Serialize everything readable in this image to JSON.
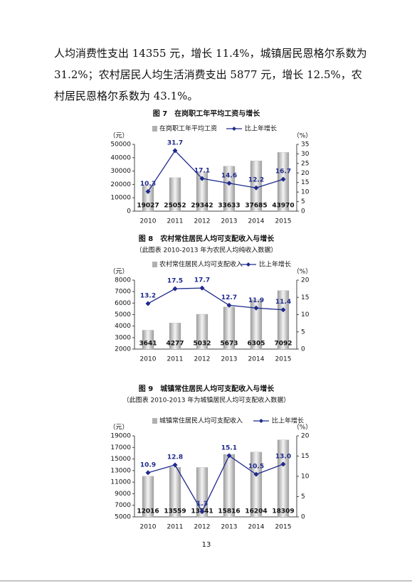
{
  "paragraph": "人均消费性支出 14355 元，增长 11.4%，城镇居民恩格尔系数为 31.2%；农村居民人均生活消费支出 5877 元，增长 12.5%，农村居民恩格尔系数为 43.1%。",
  "page_number": "13",
  "chart_data": [
    {
      "type": "combo",
      "title": "图 7　在岗职工年平均工资与增长",
      "ylabel": "（元）",
      "y2label": "（%）",
      "categories": [
        "2010",
        "2011",
        "2012",
        "2013",
        "2014",
        "2015"
      ],
      "series": [
        {
          "name": "在岗职工年平均工资",
          "type": "bar",
          "color": "#b0b0b0",
          "values": [
            19027,
            25052,
            29342,
            33633,
            37685,
            43970
          ]
        },
        {
          "name": "比上年增长",
          "type": "line",
          "axis": "y2",
          "color": "#1f2a8c",
          "values": [
            10.3,
            31.7,
            17.1,
            14.6,
            12.2,
            16.7
          ]
        }
      ],
      "ylim": [
        0,
        50000
      ],
      "yticks": [
        0,
        10000,
        20000,
        30000,
        40000,
        50000
      ],
      "y2lim": [
        0,
        35
      ],
      "y2ticks": [
        0,
        5,
        10,
        15,
        20,
        25,
        30,
        35
      ]
    },
    {
      "type": "combo",
      "title": "图 8　农村常住居民人均可支配收入与增长",
      "subtitle": "（此图表 2010-2013 年为农民人均纯收入数据）",
      "ylabel": "（元）",
      "y2label": "（%）",
      "categories": [
        "2010",
        "2011",
        "2012",
        "2013",
        "2014",
        "2015"
      ],
      "series": [
        {
          "name": "农村常住居民人均可支配收入",
          "type": "bar",
          "color": "#b0b0b0",
          "values": [
            3641,
            4277,
            5032,
            5673,
            6305,
            7092
          ]
        },
        {
          "name": "比上年增长",
          "type": "line",
          "axis": "y2",
          "color": "#1f2a8c",
          "values": [
            13.2,
            17.5,
            17.7,
            12.7,
            11.9,
            11.4
          ]
        }
      ],
      "ylim": [
        2000,
        8000
      ],
      "yticks": [
        2000,
        3000,
        4000,
        5000,
        6000,
        7000,
        8000
      ],
      "y2lim": [
        0,
        20
      ],
      "y2ticks": [
        0,
        5,
        10,
        15,
        20
      ]
    },
    {
      "type": "combo",
      "title": "图 9　城镇常住居民人均可支配收入与增长",
      "subtitle": "（此图表 2010-2013 年为城镇居民人均可支配收入数据）",
      "ylabel": "（元）",
      "y2label": "（%）",
      "categories": [
        "2010",
        "2011",
        "2012",
        "2013",
        "2014",
        "2015"
      ],
      "series": [
        {
          "name": "城镇常住居民人均可支配收入",
          "type": "bar",
          "color": "#b0b0b0",
          "values": [
            12016,
            13559,
            13541,
            15816,
            16204,
            18309
          ]
        },
        {
          "name": "比上年增长",
          "type": "line",
          "axis": "y2",
          "color": "#1f2a8c",
          "values": [
            10.9,
            12.8,
            1.3,
            15.1,
            10.5,
            13.0
          ],
          "value_labels": [
            "10.9",
            "12.8",
            "1.3",
            "15.1",
            "10.5",
            "13.0"
          ]
        }
      ],
      "ylim": [
        5000,
        19000
      ],
      "yticks": [
        5000,
        7000,
        9000,
        11000,
        13000,
        15000,
        17000,
        19000
      ],
      "y2lim": [
        0,
        20
      ],
      "y2ticks": [
        0,
        5,
        10,
        15,
        20
      ]
    }
  ]
}
